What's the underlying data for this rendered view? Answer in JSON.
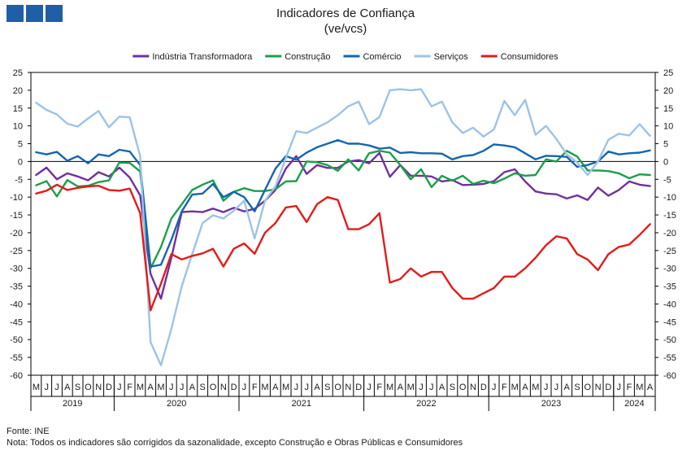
{
  "header": {
    "logo_blocks": 3,
    "logo_color": "#1f5fa8"
  },
  "chart_data": {
    "type": "line",
    "title": "Indicadores de Confiança",
    "subtitle": "(ve/vcs)",
    "ylim": [
      -60,
      25
    ],
    "yticks": [
      25,
      20,
      15,
      10,
      5,
      0,
      -5,
      -10,
      -15,
      -20,
      -25,
      -30,
      -35,
      -40,
      -45,
      -50,
      -55,
      -60
    ],
    "grid": false,
    "legend_position": "top",
    "x_month_labels": [
      "M",
      "J",
      "J",
      "A",
      "S",
      "O",
      "N",
      "D",
      "J",
      "F",
      "M",
      "A",
      "M",
      "J",
      "J",
      "A",
      "S",
      "O",
      "N",
      "D",
      "J",
      "F",
      "M",
      "A",
      "M",
      "J",
      "J",
      "A",
      "S",
      "O",
      "N",
      "D",
      "J",
      "F",
      "M",
      "A",
      "M",
      "J",
      "J",
      "A",
      "S",
      "O",
      "N",
      "D",
      "J",
      "F",
      "M",
      "A",
      "M",
      "J",
      "J",
      "A",
      "S",
      "O",
      "N",
      "D",
      "J",
      "F",
      "M",
      "A"
    ],
    "years": [
      {
        "label": "2019",
        "start": 0,
        "end": 8
      },
      {
        "label": "2020",
        "start": 8,
        "end": 20
      },
      {
        "label": "2021",
        "start": 20,
        "end": 32
      },
      {
        "label": "2022",
        "start": 32,
        "end": 44
      },
      {
        "label": "2023",
        "start": 44,
        "end": 56
      },
      {
        "label": "2024",
        "start": 56,
        "end": 60
      }
    ],
    "series": [
      {
        "name": "Indústria Transformadora",
        "color": "#7030a0",
        "values": [
          -3.8,
          -1.7,
          -5,
          -3.3,
          -4.2,
          -5.3,
          -3,
          -4.2,
          -1.7,
          -4.5,
          -9.5,
          -31.5,
          -38.5,
          -27,
          -14.2,
          -14,
          -14.2,
          -13.2,
          -14.2,
          -13,
          -14,
          -13.3,
          -11,
          -8,
          -2,
          1.5,
          -3.5,
          -1,
          -1.8,
          -1.8,
          0,
          0.4,
          -0.5,
          2.4,
          -4.3,
          -1,
          -4,
          -4,
          -4.2,
          -5.6,
          -5.2,
          -6.6,
          -6.5,
          -6.3,
          -5.5,
          -3,
          -2.2,
          -5.6,
          -8.4,
          -9,
          -9.2,
          -10.4,
          -9.5,
          -10.8,
          -7.3,
          -9.6,
          -8,
          -5.6,
          -6.5,
          -6.9
        ]
      },
      {
        "name": "Construção",
        "color": "#1aa049",
        "values": [
          -6.7,
          -5.5,
          -9.8,
          -5.2,
          -7,
          -6.8,
          -5.8,
          -5.3,
          -0.3,
          -0.4,
          -2.8,
          -30,
          -24,
          -16,
          -12,
          -8,
          -6.5,
          -5.3,
          -11,
          -8.5,
          -7.5,
          -8.3,
          -8.3,
          -7.8,
          -5.6,
          -5.5,
          0,
          -0.2,
          -1,
          -2.6,
          0.6,
          -2.5,
          2.3,
          3,
          2.5,
          -1,
          -5,
          -2.2,
          -7.2,
          -4,
          -5.4,
          -4,
          -6.3,
          -5.4,
          -6.1,
          -4.8,
          -3.3,
          -4,
          -3.8,
          0.6,
          0,
          3,
          1.4,
          -2.5,
          -2.5,
          -2.7,
          -3.3,
          -4.7,
          -3.6,
          -3.8
        ]
      },
      {
        "name": "Comércio",
        "color": "#1566ad",
        "values": [
          2.6,
          2,
          2.7,
          0.2,
          1.5,
          -0.5,
          2,
          1.5,
          3.3,
          2.8,
          -1,
          -29.5,
          -29,
          -22,
          -14,
          -9.3,
          -9,
          -6.3,
          -10,
          -8.5,
          -10,
          -14,
          -8,
          -2,
          1.5,
          0.5,
          2.5,
          4,
          5,
          6,
          5,
          5,
          4.5,
          3.6,
          3.9,
          2.4,
          2.6,
          2.3,
          2.3,
          2.2,
          0.6,
          1.5,
          1.8,
          3,
          4.8,
          4.5,
          4,
          2.3,
          0.6,
          1.6,
          1.5,
          1.3,
          -1.5,
          -1,
          0,
          2.8,
          2,
          2.3,
          2.5,
          3.1
        ]
      },
      {
        "name": "Serviços",
        "color": "#9dc3e6",
        "values": [
          16.5,
          14.5,
          13.2,
          10.6,
          9.8,
          12.1,
          14.2,
          9.6,
          12.6,
          12.4,
          1.5,
          -50.7,
          -57.2,
          -47,
          -35,
          -26,
          -17.3,
          -15.1,
          -16,
          -13.8,
          -11,
          -21.6,
          -11,
          -7,
          1,
          8.5,
          8,
          9.5,
          11,
          13,
          15.5,
          16.8,
          10.5,
          12.5,
          20,
          20.3,
          20,
          20.3,
          15.5,
          16.8,
          11,
          8,
          9.5,
          7,
          9,
          17,
          13,
          17.3,
          7.5,
          10,
          6.3,
          2,
          -0.3,
          -3.8,
          0,
          6.1,
          7.8,
          7.3,
          10.5,
          7.2
        ]
      },
      {
        "name": "Consumidores",
        "color": "#e31b1b",
        "values": [
          -9,
          -8.2,
          -6.5,
          -8,
          -7.4,
          -7,
          -6.8,
          -8,
          -8.2,
          -7.6,
          -14.5,
          -41.8,
          -34.3,
          -26,
          -27.5,
          -26.5,
          -25.8,
          -24.5,
          -29.5,
          -24.5,
          -23,
          -25.9,
          -20,
          -17.3,
          -12.9,
          -12.5,
          -17,
          -12,
          -10,
          -10.8,
          -19,
          -19,
          -17.6,
          -14.5,
          -34,
          -33,
          -30,
          -32.3,
          -31,
          -31,
          -35.5,
          -38.5,
          -38.5,
          -37,
          -35.5,
          -32.3,
          -32.3,
          -30,
          -27,
          -23.5,
          -21,
          -21.6,
          -26,
          -27.5,
          -30.5,
          -26,
          -24,
          -23.3,
          -20.6,
          -17.6
        ]
      }
    ]
  },
  "footer": {
    "source": "Fonte: INE",
    "note": "Nota: Todos os indicadores são corrigidos da sazonalidade,  excepto Construção e Obras Públicas e Consumidores"
  }
}
